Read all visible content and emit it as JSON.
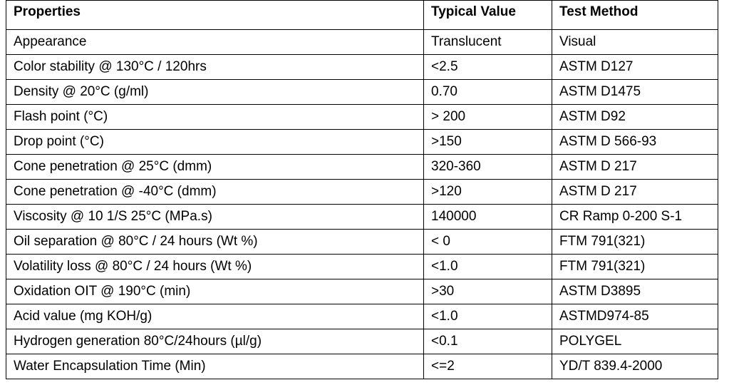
{
  "table": {
    "headers": [
      "Properties",
      "Typical Value",
      "Test Method"
    ],
    "rows": [
      [
        "Appearance",
        "Translucent",
        "Visual"
      ],
      [
        "Color stability @ 130°C / 120hrs",
        "<2.5",
        "ASTM D127"
      ],
      [
        "Density @ 20°C (g/ml)",
        "0.70",
        "ASTM D1475"
      ],
      [
        "Flash point (°C)",
        "> 200",
        "ASTM D92"
      ],
      [
        "Drop point (°C)",
        ">150",
        "ASTM D 566-93"
      ],
      [
        "Cone penetration @ 25°C (dmm)",
        "320-360",
        "ASTM D 217"
      ],
      [
        "Cone penetration @ -40°C (dmm)",
        ">120",
        "ASTM D 217"
      ],
      [
        "Viscosity @ 10 1/S 25°C (MPa.s)",
        "140000",
        "CR Ramp 0-200 S-1"
      ],
      [
        "Oil separation @ 80°C / 24 hours (Wt %)",
        "< 0",
        "FTM 791(321)"
      ],
      [
        "Volatility loss @ 80°C / 24 hours (Wt %)",
        "<1.0",
        "FTM 791(321)"
      ],
      [
        "Oxidation OIT @ 190°C (min)",
        ">30",
        "ASTM D3895"
      ],
      [
        "Acid value (mg KOH/g)",
        "<1.0",
        "ASTMD974-85"
      ],
      [
        "Hydrogen generation 80°C/24hours (µl/g)",
        "<0.1",
        "POLYGEL"
      ],
      [
        "Water Encapsulation Time (Min)",
        "<=2",
        "YD/T 839.4-2000"
      ]
    ]
  }
}
